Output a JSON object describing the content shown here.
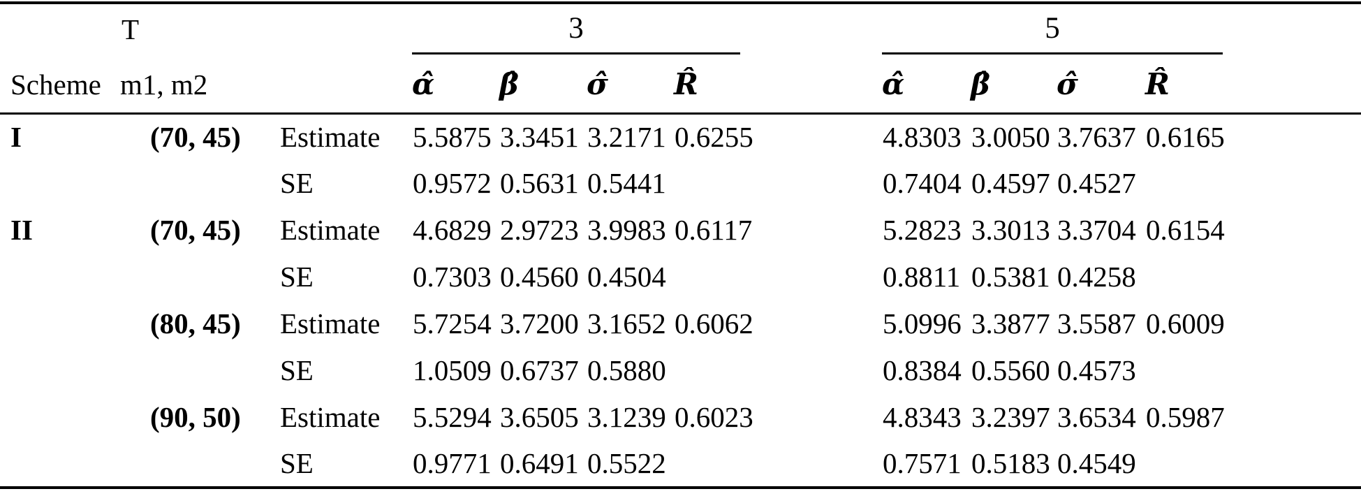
{
  "table": {
    "header": {
      "t_label": "T",
      "scheme_label": "Scheme",
      "m_label": "m1, m2",
      "group3_label": "3",
      "group5_label": "5",
      "params": [
        "α̂",
        "β̂",
        "σ̂",
        "R̂"
      ]
    },
    "stat_row_labels": [
      "Estimate",
      "SE"
    ],
    "rows": [
      {
        "scheme": "I",
        "m": "(70, 45)",
        "stat": "Estimate",
        "g3": [
          "5.5875",
          "3.3451",
          "3.2171",
          "0.6255"
        ],
        "g5": [
          "4.8303",
          "3.0050",
          "3.7637",
          "0.6165"
        ]
      },
      {
        "scheme": "",
        "m": "",
        "stat": "SE",
        "g3": [
          "0.9572",
          "0.5631",
          "0.5441",
          ""
        ],
        "g5": [
          "0.7404",
          "0.4597",
          "0.4527",
          ""
        ]
      },
      {
        "scheme": "II",
        "m": "(70, 45)",
        "stat": "Estimate",
        "g3": [
          "4.6829",
          "2.9723",
          "3.9983",
          "0.6117"
        ],
        "g5": [
          "5.2823",
          "3.3013",
          "3.3704",
          "0.6154"
        ]
      },
      {
        "scheme": "",
        "m": "",
        "stat": "SE",
        "g3": [
          "0.7303",
          "0.4560",
          "0.4504",
          ""
        ],
        "g5": [
          "0.8811",
          "0.5381",
          "0.4258",
          ""
        ]
      },
      {
        "scheme": "",
        "m": "(80, 45)",
        "stat": "Estimate",
        "g3": [
          "5.7254",
          "3.7200",
          "3.1652",
          "0.6062"
        ],
        "g5": [
          "5.0996",
          "3.3877",
          "3.5587",
          "0.6009"
        ]
      },
      {
        "scheme": "",
        "m": "",
        "stat": "SE",
        "g3": [
          "1.0509",
          "0.6737",
          "0.5880",
          ""
        ],
        "g5": [
          "0.8384",
          "0.5560",
          "0.4573",
          ""
        ]
      },
      {
        "scheme": "",
        "m": "(90, 50)",
        "stat": "Estimate",
        "g3": [
          "5.5294",
          "3.6505",
          "3.1239",
          "0.6023"
        ],
        "g5": [
          "4.8343",
          "3.2397",
          "3.6534",
          "0.5987"
        ]
      },
      {
        "scheme": "",
        "m": "",
        "stat": "SE",
        "g3": [
          "0.9771",
          "0.6491",
          "0.5522",
          ""
        ],
        "g5": [
          "0.7571",
          "0.5183",
          "0.4549",
          ""
        ]
      }
    ],
    "param_names": [
      "alpha",
      "beta",
      "sigma",
      "R"
    ]
  },
  "colors": {
    "text": "#000000",
    "rule": "#000000",
    "background": "#ffffff"
  }
}
